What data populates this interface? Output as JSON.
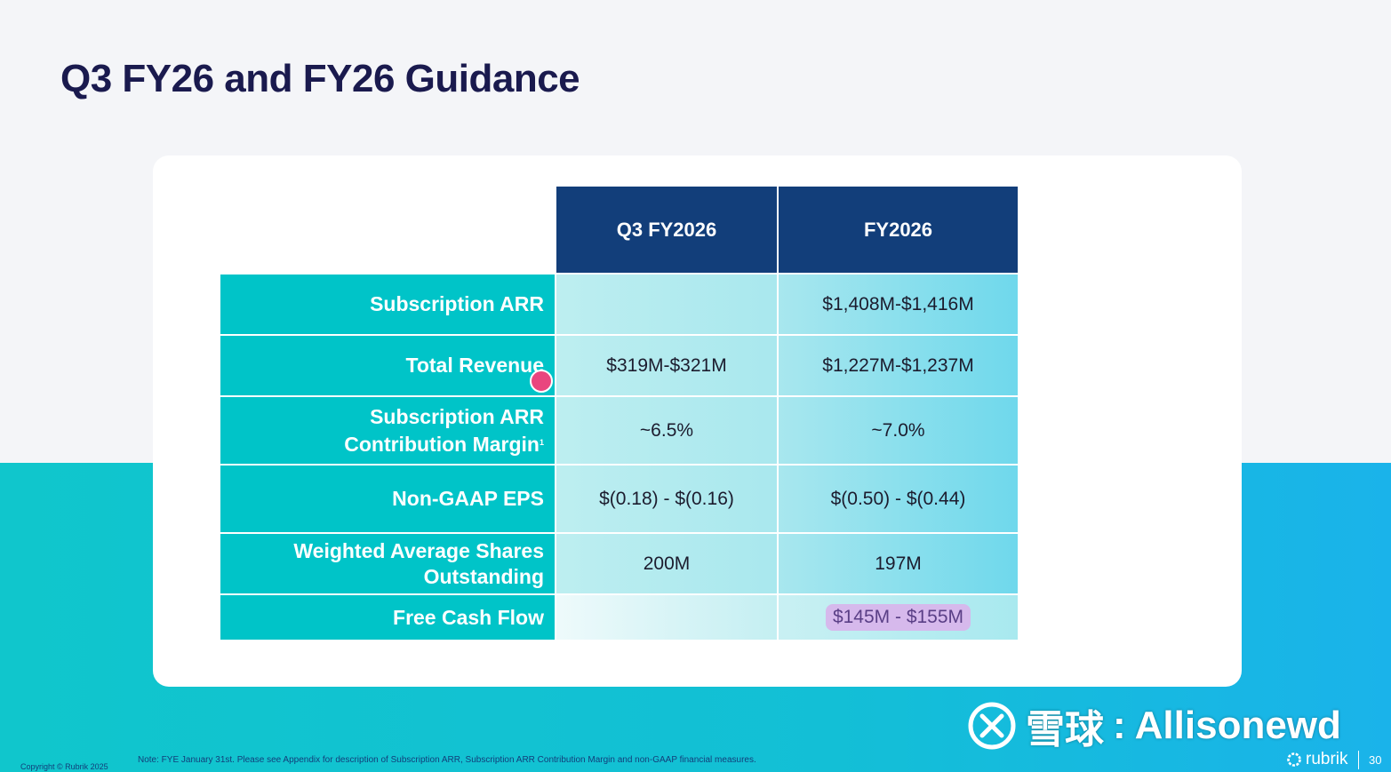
{
  "slide": {
    "title": "Q3 FY26 and FY26 Guidance",
    "note": "Note: FYE January 31st. Please see Appendix for description of Subscription ARR, Subscription ARR Contribution Margin and non-GAAP financial measures.",
    "copyright": "Copyright © Rubrik 2025",
    "brand": "rubrik",
    "page_number": "30"
  },
  "table": {
    "headers": {
      "q3": "Q3 FY2026",
      "fy": "FY2026"
    },
    "rows": [
      {
        "label": "Subscription ARR",
        "q3": "",
        "fy": "$1,408M-$1,416M"
      },
      {
        "label": "Total Revenue",
        "q3": "$319M-$321M",
        "fy": "$1,227M-$1,237M"
      },
      {
        "label_line1": "Subscription ARR",
        "label_line2": "Contribution Margin",
        "footnote": "1",
        "q3": "~6.5%",
        "fy": "~7.0%"
      },
      {
        "label": "Non-GAAP EPS",
        "q3": "$(0.18) - $(0.16)",
        "fy": "$(0.50) - $(0.44)"
      },
      {
        "label_line1": "Weighted Average Shares",
        "label_line2": "Outstanding",
        "q3": "200M",
        "fy": "197M"
      },
      {
        "label": "Free Cash Flow",
        "q3": "",
        "fy": "$145M - $155M"
      }
    ]
  },
  "watermark": {
    "site": "雪球",
    "separator": ":",
    "user": "Allisonewd"
  },
  "colors": {
    "header_navy": "#123e7a",
    "label_teal": "#00c4c8",
    "title_navy": "#1a1a4e",
    "highlight_purple": "#d6b9ec",
    "cursor_pink": "#e9457e"
  }
}
